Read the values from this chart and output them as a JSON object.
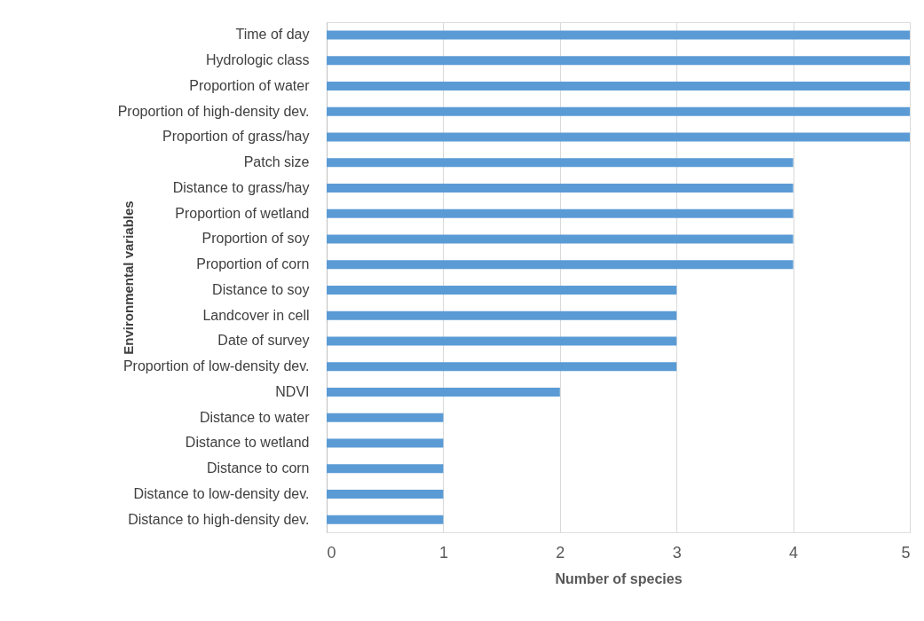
{
  "chart_data": {
    "type": "bar",
    "orientation": "horizontal",
    "xlabel": "Number of species",
    "ylabel": "Environmental variables",
    "categories": [
      "Time of day",
      "Hydrologic class",
      "Proportion of water",
      "Proportion of high-density dev.",
      "Proportion of grass/hay",
      "Patch size",
      "Distance to grass/hay",
      "Proportion of wetland",
      "Proportion of soy",
      "Proportion of corn",
      "Distance to soy",
      "Landcover in cell",
      "Date of survey",
      "Proportion of low-density dev.",
      "NDVI",
      "Distance to water",
      "Distance to wetland",
      "Distance to corn",
      "Distance to low-density dev.",
      "Distance to high-density dev."
    ],
    "values": [
      5,
      5,
      5,
      5,
      5,
      4,
      4,
      4,
      4,
      4,
      3,
      3,
      3,
      3,
      2,
      1,
      1,
      1,
      1,
      1
    ],
    "color": "#5b9bd5",
    "xlim": [
      0,
      5
    ],
    "xticks": [
      0,
      1,
      2,
      3,
      4,
      5
    ],
    "grid": "x"
  }
}
